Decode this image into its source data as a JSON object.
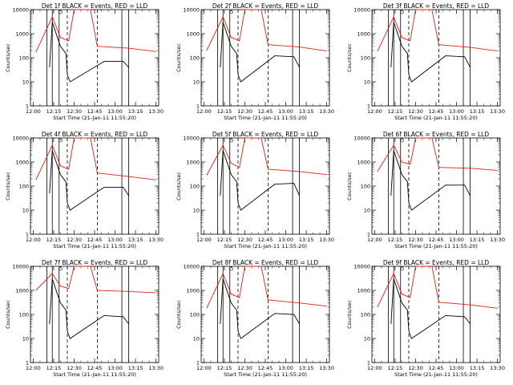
{
  "colors": {
    "events": "#000000",
    "lld": "#e02010",
    "axis": "#000000",
    "background": "#ffffff"
  },
  "chart_data": [
    {
      "type": "line",
      "title": "Det 1f  BLACK = Events, RED = LLD",
      "xlabel": "Start Time (21-Jan-11 11:55:20)",
      "ylabel": "Counts/sec",
      "yscale": "log",
      "ylim": [
        1,
        10000
      ],
      "x_ticks": [
        "12:00",
        "12:15",
        "12:30",
        "12:45",
        "13:00",
        "13:15",
        "13:30"
      ],
      "y_ticks": [
        "1",
        "10",
        "100",
        "1000",
        "10000"
      ],
      "series": [
        {
          "name": "Events",
          "points": [
            [
              "12:12",
              40
            ],
            [
              "12:14",
              3000
            ],
            [
              "12:20",
              300
            ],
            [
              "12:24",
              150
            ],
            [
              "12:25",
              20
            ],
            [
              "12:27",
              10
            ],
            [
              "12:52",
              70
            ],
            [
              "13:06",
              70
            ],
            [
              "13:10",
              40
            ]
          ]
        },
        {
          "name": "LLD",
          "points": [
            [
              "12:02",
              170
            ],
            [
              "12:14",
              5000
            ],
            [
              "12:20",
              700
            ],
            [
              "12:26",
              500
            ],
            [
              "12:30",
              10000
            ],
            [
              "12:42",
              10000
            ],
            [
              "12:47",
              300
            ],
            [
              "13:10",
              250
            ],
            [
              "13:30",
              180
            ]
          ]
        }
      ]
    },
    {
      "type": "line",
      "title": "Det 2f  BLACK = Events, RED = LLD",
      "xlabel": "Start Time (21-Jan-11 11:55:20)",
      "ylabel": "Counts/sec",
      "yscale": "log",
      "ylim": [
        1,
        10000
      ],
      "x_ticks": [
        "12:00",
        "12:15",
        "12:30",
        "12:45",
        "13:00",
        "13:15",
        "13:30"
      ],
      "y_ticks": [
        "1",
        "10",
        "100",
        "1000",
        "10000"
      ],
      "series": [
        {
          "name": "Events",
          "points": [
            [
              "12:12",
              40
            ],
            [
              "12:14",
              3000
            ],
            [
              "12:20",
              300
            ],
            [
              "12:24",
              150
            ],
            [
              "12:25",
              20
            ],
            [
              "12:27",
              10
            ],
            [
              "12:52",
              120
            ],
            [
              "13:06",
              110
            ],
            [
              "13:10",
              40
            ]
          ]
        },
        {
          "name": "LLD",
          "points": [
            [
              "12:02",
              200
            ],
            [
              "12:14",
              5000
            ],
            [
              "12:20",
              700
            ],
            [
              "12:26",
              500
            ],
            [
              "12:30",
              10000
            ],
            [
              "12:42",
              10000
            ],
            [
              "12:47",
              350
            ],
            [
              "13:10",
              280
            ],
            [
              "13:30",
              190
            ]
          ]
        }
      ]
    },
    {
      "type": "line",
      "title": "Det 3f  BLACK = Events, RED = LLD",
      "xlabel": "Start Time (21-Jan-11 11:55:20)",
      "ylabel": "Counts/sec",
      "yscale": "log",
      "ylim": [
        1,
        10000
      ],
      "x_ticks": [
        "12:00",
        "12:15",
        "12:30",
        "12:45",
        "13:00",
        "13:15",
        "13:30"
      ],
      "y_ticks": [
        "1",
        "10",
        "100",
        "1000",
        "10000"
      ],
      "series": [
        {
          "name": "Events",
          "points": [
            [
              "12:12",
              40
            ],
            [
              "12:14",
              3000
            ],
            [
              "12:20",
              300
            ],
            [
              "12:24",
              150
            ],
            [
              "12:25",
              20
            ],
            [
              "12:27",
              10
            ],
            [
              "12:52",
              120
            ],
            [
              "13:06",
              110
            ],
            [
              "13:10",
              40
            ]
          ]
        },
        {
          "name": "LLD",
          "points": [
            [
              "12:02",
              180
            ],
            [
              "12:14",
              5000
            ],
            [
              "12:20",
              700
            ],
            [
              "12:26",
              500
            ],
            [
              "12:30",
              10000
            ],
            [
              "12:42",
              10000
            ],
            [
              "12:47",
              350
            ],
            [
              "13:10",
              270
            ],
            [
              "13:30",
              190
            ]
          ]
        }
      ]
    },
    {
      "type": "line",
      "title": "Det 4f  BLACK = Events, RED = LLD",
      "xlabel": "Start Time (21-Jan-11 11:55:20)",
      "ylabel": "Counts/sec",
      "yscale": "log",
      "ylim": [
        1,
        10000
      ],
      "x_ticks": [
        "12:00",
        "12:15",
        "12:30",
        "12:45",
        "13:00",
        "13:15",
        "13:30"
      ],
      "y_ticks": [
        "1",
        "10",
        "100",
        "1000",
        "10000"
      ],
      "series": [
        {
          "name": "Events",
          "points": [
            [
              "12:12",
              50
            ],
            [
              "12:14",
              3000
            ],
            [
              "12:20",
              300
            ],
            [
              "12:24",
              150
            ],
            [
              "12:25",
              20
            ],
            [
              "12:27",
              10
            ],
            [
              "12:52",
              90
            ],
            [
              "13:06",
              90
            ],
            [
              "13:10",
              40
            ]
          ]
        },
        {
          "name": "LLD",
          "points": [
            [
              "12:02",
              180
            ],
            [
              "12:14",
              5000
            ],
            [
              "12:20",
              700
            ],
            [
              "12:26",
              500
            ],
            [
              "12:30",
              10000
            ],
            [
              "12:42",
              10000
            ],
            [
              "12:47",
              350
            ],
            [
              "13:10",
              250
            ],
            [
              "13:30",
              180
            ]
          ]
        }
      ]
    },
    {
      "type": "line",
      "title": "Det 5f  BLACK = Events, RED = LLD",
      "xlabel": "Start Time (21-Jan-11 11:55:20)",
      "ylabel": "Counts/sec",
      "yscale": "log",
      "ylim": [
        1,
        10000
      ],
      "x_ticks": [
        "12:00",
        "12:15",
        "12:30",
        "12:45",
        "13:00",
        "13:15",
        "13:30"
      ],
      "y_ticks": [
        "1",
        "10",
        "100",
        "1000",
        "10000"
      ],
      "series": [
        {
          "name": "Events",
          "points": [
            [
              "12:12",
              40
            ],
            [
              "12:14",
              3000
            ],
            [
              "12:20",
              300
            ],
            [
              "12:24",
              150
            ],
            [
              "12:25",
              20
            ],
            [
              "12:27",
              10
            ],
            [
              "12:52",
              120
            ],
            [
              "13:06",
              130
            ],
            [
              "13:10",
              40
            ]
          ]
        },
        {
          "name": "LLD",
          "points": [
            [
              "12:02",
              280
            ],
            [
              "12:14",
              5000
            ],
            [
              "12:20",
              900
            ],
            [
              "12:26",
              600
            ],
            [
              "12:30",
              10000
            ],
            [
              "12:42",
              10000
            ],
            [
              "12:47",
              500
            ],
            [
              "13:10",
              400
            ],
            [
              "13:30",
              300
            ]
          ]
        }
      ]
    },
    {
      "type": "line",
      "title": "Det 6f  BLACK = Events, RED = LLD",
      "xlabel": "Start Time (21-Jan-11 11:55:20)",
      "ylabel": "Counts/sec",
      "yscale": "log",
      "ylim": [
        1,
        10000
      ],
      "x_ticks": [
        "12:00",
        "12:15",
        "12:30",
        "12:45",
        "13:00",
        "13:15",
        "13:30"
      ],
      "y_ticks": [
        "1",
        "10",
        "100",
        "1000",
        "10000"
      ],
      "series": [
        {
          "name": "Events",
          "points": [
            [
              "12:12",
              40
            ],
            [
              "12:14",
              3000
            ],
            [
              "12:20",
              300
            ],
            [
              "12:24",
              150
            ],
            [
              "12:25",
              20
            ],
            [
              "12:27",
              10
            ],
            [
              "12:52",
              110
            ],
            [
              "13:06",
              110
            ],
            [
              "13:10",
              40
            ]
          ]
        },
        {
          "name": "LLD",
          "points": [
            [
              "12:02",
              400
            ],
            [
              "12:14",
              5000
            ],
            [
              "12:20",
              1000
            ],
            [
              "12:26",
              800
            ],
            [
              "12:30",
              10000
            ],
            [
              "12:42",
              10000
            ],
            [
              "12:47",
              600
            ],
            [
              "13:10",
              550
            ],
            [
              "13:30",
              450
            ]
          ]
        }
      ]
    },
    {
      "type": "line",
      "title": "Det 7f  BLACK = Events, RED = LLD",
      "xlabel": "Start Time (21-Jan-11 11:55:20)",
      "ylabel": "Counts/sec",
      "yscale": "log",
      "ylim": [
        1,
        10000
      ],
      "x_ticks": [
        "12:00",
        "12:15",
        "12:30",
        "12:45",
        "13:00",
        "13:15",
        "13:30"
      ],
      "y_ticks": [
        "1",
        "10",
        "100",
        "1000",
        "10000"
      ],
      "series": [
        {
          "name": "Events",
          "points": [
            [
              "12:12",
              40
            ],
            [
              "12:14",
              3000
            ],
            [
              "12:20",
              300
            ],
            [
              "12:24",
              150
            ],
            [
              "12:25",
              20
            ],
            [
              "12:27",
              10
            ],
            [
              "12:52",
              90
            ],
            [
              "13:06",
              80
            ],
            [
              "13:10",
              40
            ]
          ]
        },
        {
          "name": "LLD",
          "points": [
            [
              "12:02",
              1000
            ],
            [
              "12:14",
              5000
            ],
            [
              "12:20",
              1500
            ],
            [
              "12:26",
              1200
            ],
            [
              "12:30",
              10000
            ],
            [
              "12:42",
              10000
            ],
            [
              "12:47",
              1000
            ],
            [
              "13:10",
              900
            ],
            [
              "13:30",
              800
            ]
          ]
        }
      ]
    },
    {
      "type": "line",
      "title": "Det 8f  BLACK = Events, RED = LLD",
      "xlabel": "Start Time (21-Jan-11 11:55:20)",
      "ylabel": "Counts/sec",
      "yscale": "log",
      "ylim": [
        1,
        10000
      ],
      "x_ticks": [
        "12:00",
        "12:15",
        "12:30",
        "12:45",
        "13:00",
        "13:15",
        "13:30"
      ],
      "y_ticks": [
        "1",
        "10",
        "100",
        "1000",
        "10000"
      ],
      "series": [
        {
          "name": "Events",
          "points": [
            [
              "12:12",
              40
            ],
            [
              "12:14",
              3000
            ],
            [
              "12:20",
              300
            ],
            [
              "12:24",
              150
            ],
            [
              "12:25",
              20
            ],
            [
              "12:27",
              10
            ],
            [
              "12:52",
              110
            ],
            [
              "13:06",
              100
            ],
            [
              "13:10",
              40
            ]
          ]
        },
        {
          "name": "LLD",
          "points": [
            [
              "12:02",
              180
            ],
            [
              "12:14",
              5000
            ],
            [
              "12:20",
              700
            ],
            [
              "12:26",
              500
            ],
            [
              "12:30",
              10000
            ],
            [
              "12:42",
              10000
            ],
            [
              "12:47",
              400
            ],
            [
              "13:10",
              300
            ],
            [
              "13:30",
              220
            ]
          ]
        }
      ]
    },
    {
      "type": "line",
      "title": "Det 9f  BLACK = Events, RED = LLD",
      "xlabel": "Start Time (21-Jan-11 11:55:20)",
      "ylabel": "Counts/sec",
      "yscale": "log",
      "ylim": [
        1,
        10000
      ],
      "x_ticks": [
        "12:00",
        "12:15",
        "12:30",
        "12:45",
        "13:00",
        "13:15",
        "13:30"
      ],
      "y_ticks": [
        "1",
        "10",
        "100",
        "1000",
        "10000"
      ],
      "series": [
        {
          "name": "Events",
          "points": [
            [
              "12:12",
              40
            ],
            [
              "12:14",
              3000
            ],
            [
              "12:20",
              300
            ],
            [
              "12:24",
              150
            ],
            [
              "12:25",
              20
            ],
            [
              "12:27",
              10
            ],
            [
              "12:52",
              90
            ],
            [
              "13:06",
              80
            ],
            [
              "13:10",
              40
            ]
          ]
        },
        {
          "name": "LLD",
          "points": [
            [
              "12:02",
              200
            ],
            [
              "12:14",
              5000
            ],
            [
              "12:20",
              700
            ],
            [
              "12:26",
              500
            ],
            [
              "12:30",
              10000
            ],
            [
              "12:42",
              10000
            ],
            [
              "12:47",
              320
            ],
            [
              "13:10",
              250
            ],
            [
              "13:30",
              180
            ]
          ]
        }
      ]
    }
  ]
}
